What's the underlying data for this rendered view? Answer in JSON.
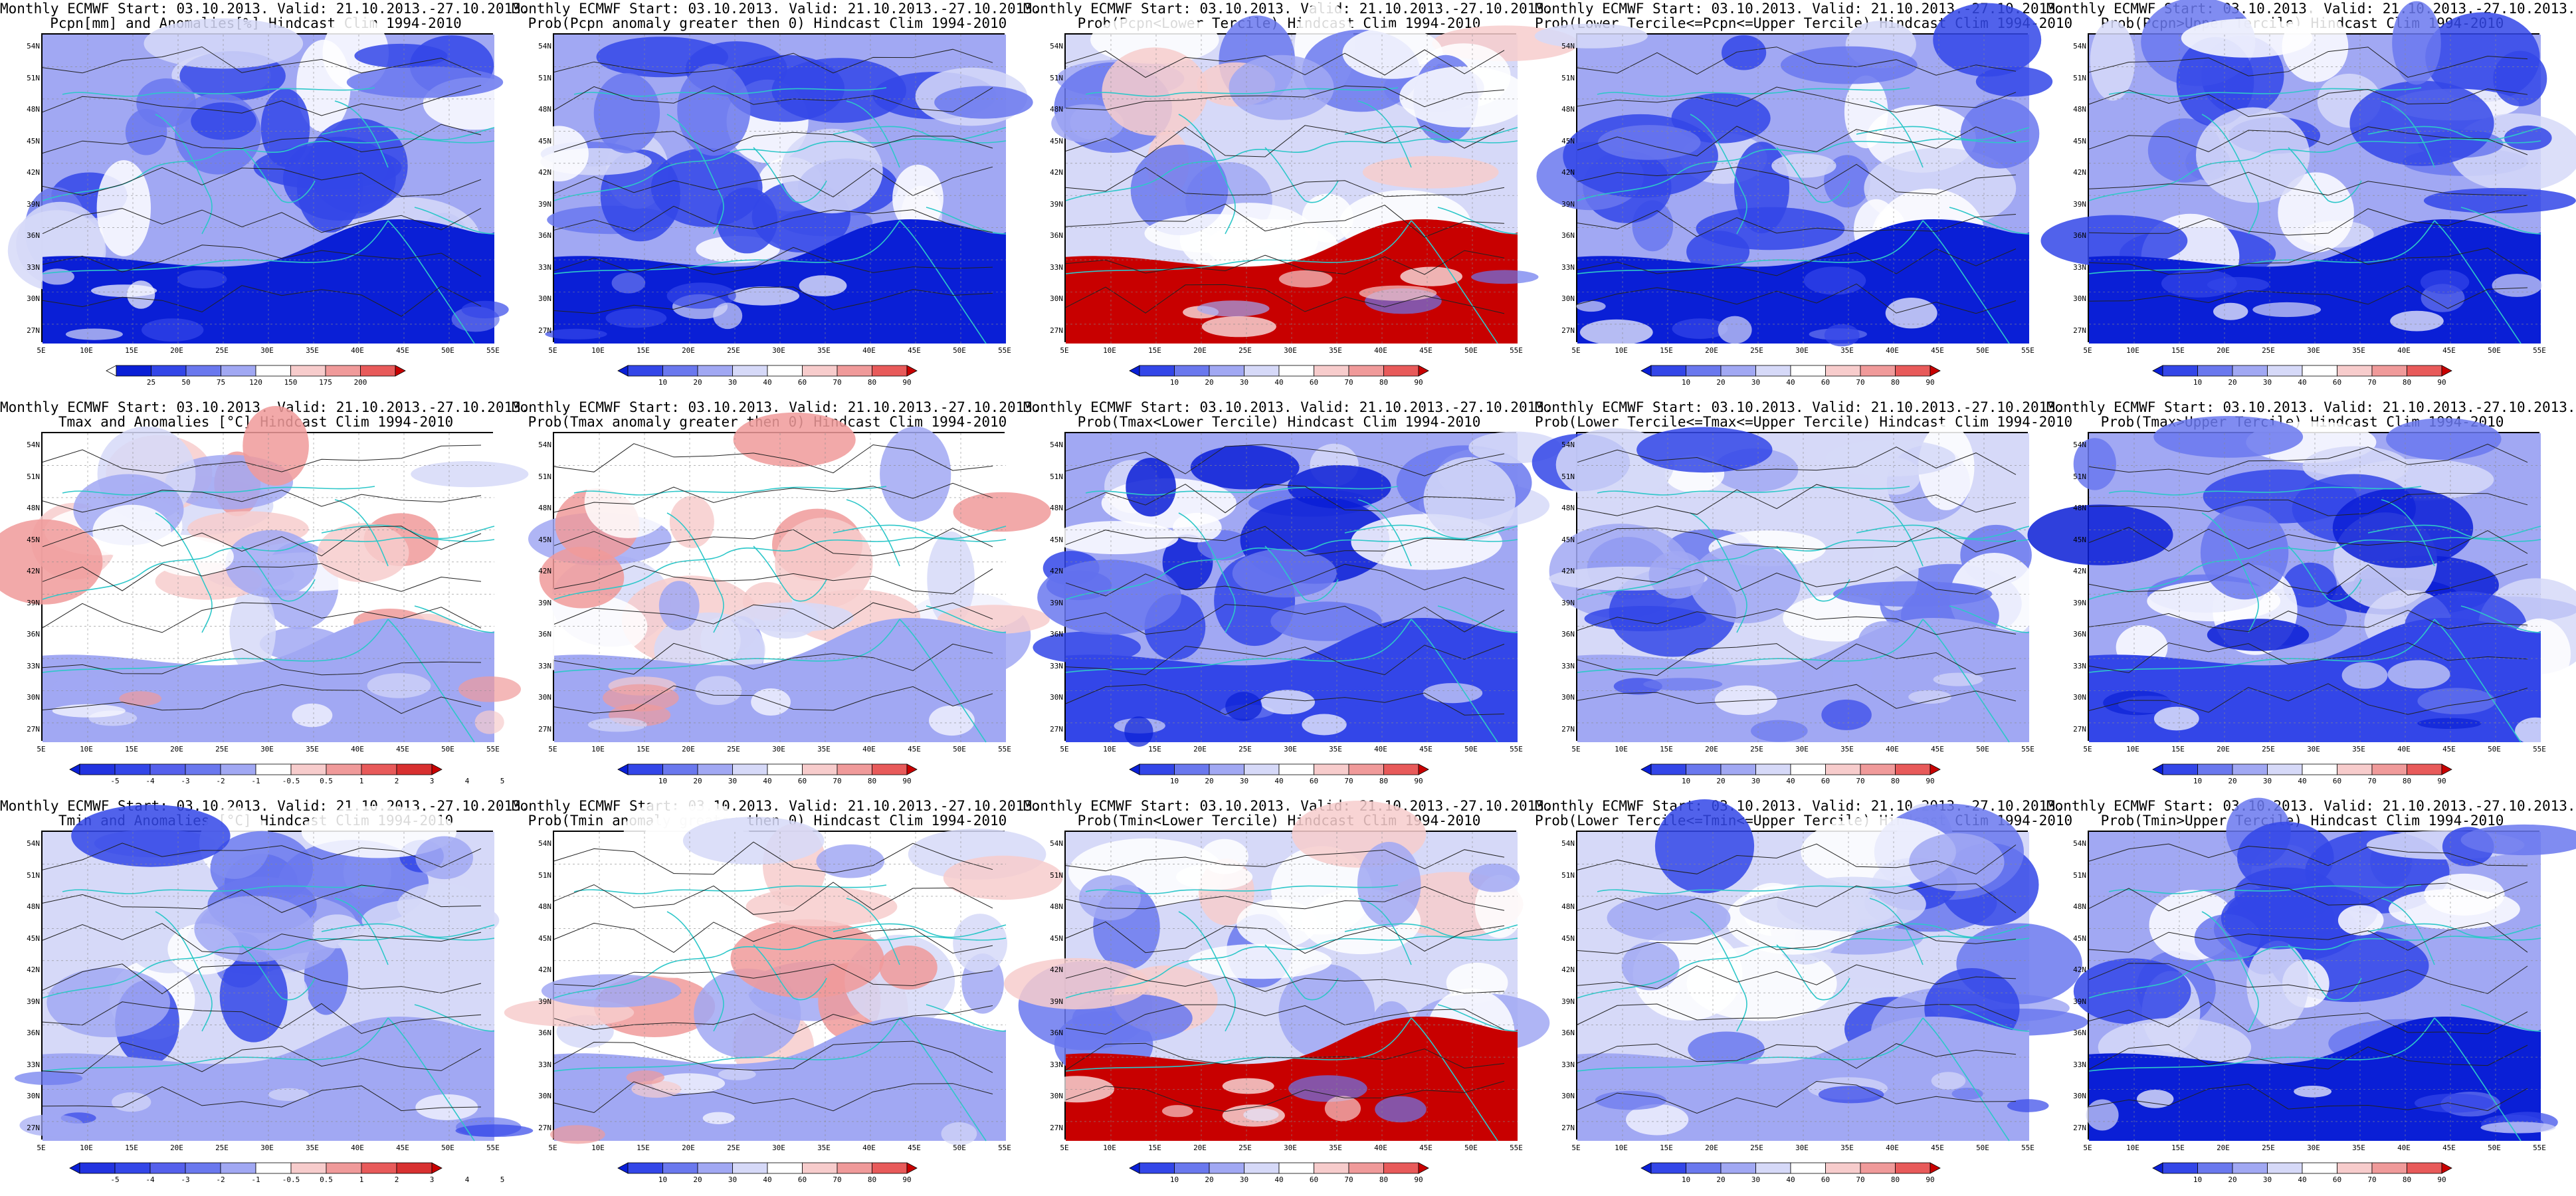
{
  "panels": [
    {
      "id": "p11",
      "line1": "Monthly ECMWF Start: 03.10.2013. Valid: 21.10.2013.-27.10.2013.",
      "line2": "Pcpn[mm] and Anomalies[%]",
      "line2b": " Hindcast Clim 1994-2010",
      "theme": "pcpn",
      "scale": "anom_pcpn"
    },
    {
      "id": "p12",
      "line1": "Monthly ECMWF Start: 03.10.2013. Valid: 21.10.2013.-27.10.2013.",
      "line2": "Prob(Pcpn anomaly greater then 0)",
      "line2b": " Hindcast Clim 1994-2010",
      "theme": "pcpn",
      "scale": "prob"
    },
    {
      "id": "p13",
      "line1": "Monthly ECMWF Start: 03.10.2013. Valid: 21.10.2013.-27.10.2013.",
      "line2": "Prob(Pcpn<Lower Tercile)",
      "line2b": " Hindcast Clim 1994-2010",
      "theme": "pcpn_low",
      "scale": "prob"
    },
    {
      "id": "p14",
      "line1": "Monthly ECMWF Start: 03.10.2013. Valid: 21.10.2013.-27.10.2013.",
      "line2": "Prob(Lower Tercile<=Pcpn<=Upper Tercile)",
      "line2b": " Hindcast Clim 1994-2010",
      "theme": "pcpn_mid",
      "scale": "prob"
    },
    {
      "id": "p15",
      "line1": "Monthly ECMWF Start: 03.10.2013. Valid: 21.10.2013.-27.10.2013.",
      "line2": "Prob(Pcpn>Upper Tercile)",
      "line2b": " Hindcast Clim 1994-2010",
      "theme": "pcpn",
      "scale": "prob"
    },
    {
      "id": "p21",
      "line1": "Monthly ECMWF Start: 03.10.2013. Valid: 21.10.2013.-27.10.2013.",
      "line2": "Tmax and Anomalies [°C]",
      "line2b": " Hindcast Clim 1994-2010",
      "theme": "temp_warm",
      "scale": "anom_temp"
    },
    {
      "id": "p22",
      "line1": "Monthly ECMWF Start: 03.10.2013. Valid: 21.10.2013.-27.10.2013.",
      "line2": "Prob(Tmax anomaly greater then 0)",
      "line2b": " Hindcast Clim 1994-2010",
      "theme": "temp_warm",
      "scale": "prob"
    },
    {
      "id": "p23",
      "line1": "Monthly ECMWF Start: 03.10.2013. Valid: 21.10.2013.-27.10.2013.",
      "line2": "Prob(Tmax<Lower Tercile)",
      "line2b": " Hindcast Clim 1994-2010",
      "theme": "temp_cold",
      "scale": "prob"
    },
    {
      "id": "p24",
      "line1": "Monthly ECMWF Start: 03.10.2013. Valid: 21.10.2013.-27.10.2013.",
      "line2": "Prob(Lower Tercile<=Tmax<=Upper Tercile)",
      "line2b": " Hindcast Clim 1994-2010",
      "theme": "temp_mid",
      "scale": "prob"
    },
    {
      "id": "p25",
      "line1": "Monthly ECMWF Start: 03.10.2013. Valid: 21.10.2013.-27.10.2013.",
      "line2": "Prob(Tmax>Upper Tercile)",
      "line2b": " Hindcast Clim 1994-2010",
      "theme": "temp_cold",
      "scale": "prob"
    },
    {
      "id": "p31",
      "line1": "Monthly ECMWF Start: 03.10.2013. Valid: 21.10.2013.-27.10.2013.",
      "line2": "Tmin and Anomalies [°C]",
      "line2b": " Hindcast Clim 1994-2010",
      "theme": "temp_mid",
      "scale": "anom_temp"
    },
    {
      "id": "p32",
      "line1": "Monthly ECMWF Start: 03.10.2013. Valid: 21.10.2013.-27.10.2013.",
      "line2": "Prob(Tmin anomaly greater then 0)",
      "line2b": " Hindcast Clim 1994-2010",
      "theme": "temp_warm",
      "scale": "prob"
    },
    {
      "id": "p33",
      "line1": "Monthly ECMWF Start: 03.10.2013. Valid: 21.10.2013.-27.10.2013.",
      "line2": "Prob(Tmin<Lower Tercile)",
      "line2b": " Hindcast Clim 1994-2010",
      "theme": "pcpn_low",
      "scale": "prob"
    },
    {
      "id": "p34",
      "line1": "Monthly ECMWF Start: 03.10.2013. Valid: 21.10.2013.-27.10.2013.",
      "line2": "Prob(Lower Tercile<=Tmin<=Upper Tercile)",
      "line2b": " Hindcast Clim 1994-2010",
      "theme": "temp_mid",
      "scale": "prob"
    },
    {
      "id": "p35",
      "line1": "Monthly ECMWF Start: 03.10.2013. Valid: 21.10.2013.-27.10.2013.",
      "line2": "Prob(Tmin>Upper Tercile)",
      "line2b": " Hindcast Clim 1994-2010",
      "theme": "pcpn",
      "scale": "prob"
    }
  ],
  "axes": {
    "lat_labels": [
      "54N",
      "51N",
      "48N",
      "45N",
      "42N",
      "39N",
      "36N",
      "33N",
      "30N",
      "27N"
    ],
    "lon_labels": [
      "5E",
      "10E",
      "15E",
      "20E",
      "25E",
      "30E",
      "35E",
      "40E",
      "45E",
      "50E",
      "55E"
    ]
  },
  "scales": {
    "prob": {
      "labels": [
        "10",
        "20",
        "30",
        "40",
        "60",
        "70",
        "80",
        "90"
      ],
      "colors": [
        "#0a1fd6",
        "#3346e8",
        "#6a78ee",
        "#a1a8f3",
        "#d6d9f8",
        "#ffffff",
        "#f7cccc",
        "#f09a9a",
        "#e85a5a",
        "#c80000"
      ]
    },
    "anom_pcpn": {
      "labels": [
        "25",
        "50",
        "75",
        "120",
        "150",
        "175",
        "200"
      ],
      "colors": [
        "#ffffff",
        "#0a1fd6",
        "#3346e8",
        "#6a78ee",
        "#a1a8f3",
        "#ffffff",
        "#f7cccc",
        "#f09a9a",
        "#e85a5a",
        "#c80000"
      ]
    },
    "anom_temp": {
      "labels": [
        "-5",
        "-4",
        "-3",
        "-2",
        "-1",
        "-0.5",
        "0.5",
        "1",
        "2",
        "3",
        "4",
        "5"
      ],
      "colors": [
        "#0a1fd6",
        "#2233e0",
        "#3346e8",
        "#5560ec",
        "#6a78ee",
        "#a1a8f3",
        "#ffffff",
        "#f7cccc",
        "#f09a9a",
        "#e85a5a",
        "#d83030",
        "#c80000"
      ]
    }
  },
  "themes": {
    "pcpn": {
      "bg": "#a1a8f3",
      "blobs": [
        "#6a78ee",
        "#3346e8",
        "#ffffff",
        "#d6d9f8",
        "#3346e8"
      ],
      "south": "#0a1fd6"
    },
    "pcpn_low": {
      "bg": "#d6d9f8",
      "blobs": [
        "#a1a8f3",
        "#ffffff",
        "#6a78ee",
        "#f7cccc",
        "#ffffff"
      ],
      "south": "#c80000"
    },
    "pcpn_mid": {
      "bg": "#a1a8f3",
      "blobs": [
        "#6a78ee",
        "#3346e8",
        "#d6d9f8",
        "#ffffff",
        "#3346e8"
      ],
      "south": "#0a1fd6"
    },
    "temp_warm": {
      "bg": "#ffffff",
      "blobs": [
        "#f7cccc",
        "#a1a8f3",
        "#ffffff",
        "#d6d9f8",
        "#f09a9a"
      ],
      "south": "#a1a8f3"
    },
    "temp_cold": {
      "bg": "#a1a8f3",
      "blobs": [
        "#6a78ee",
        "#3346e8",
        "#d6d9f8",
        "#ffffff",
        "#0a1fd6"
      ],
      "south": "#3346e8"
    },
    "temp_mid": {
      "bg": "#d6d9f8",
      "blobs": [
        "#a1a8f3",
        "#ffffff",
        "#6a78ee",
        "#d6d9f8",
        "#3346e8"
      ],
      "south": "#a1a8f3"
    }
  }
}
